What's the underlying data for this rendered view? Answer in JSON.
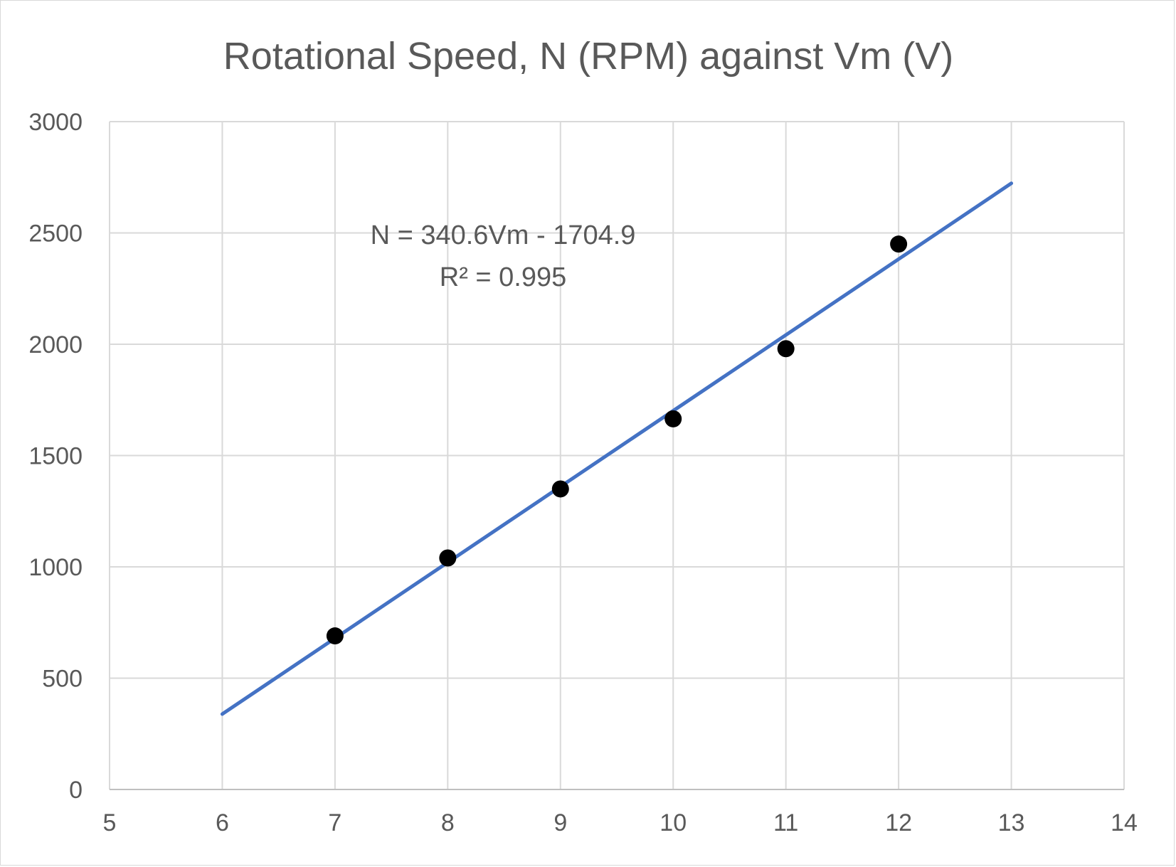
{
  "chart_data": {
    "type": "scatter",
    "title": "Rotational Speed, N (RPM) against Vm (V)",
    "xlabel": "",
    "ylabel": "",
    "xlim": [
      5,
      14
    ],
    "ylim": [
      0,
      3000
    ],
    "x_ticks": [
      "5",
      "6",
      "7",
      "8",
      "9",
      "10",
      "11",
      "12",
      "13",
      "14"
    ],
    "y_ticks": [
      "0",
      "500",
      "1000",
      "1500",
      "2000",
      "2500",
      "3000"
    ],
    "grid": true,
    "legend": "none",
    "series": [
      {
        "x": [
          7,
          8,
          9,
          10,
          11,
          12
        ],
        "y": [
          690,
          1040,
          1350,
          1665,
          1980,
          2450
        ],
        "color": "#000000",
        "marker": "circle"
      }
    ],
    "trendline": {
      "type": "linear",
      "slope": 340.6,
      "intercept": -1704.9,
      "x_range": [
        6,
        13
      ],
      "color": "#4472c4",
      "equation_label": "N = 340.6Vm - 1704.9",
      "r2_label": "R² = 0.995"
    }
  }
}
